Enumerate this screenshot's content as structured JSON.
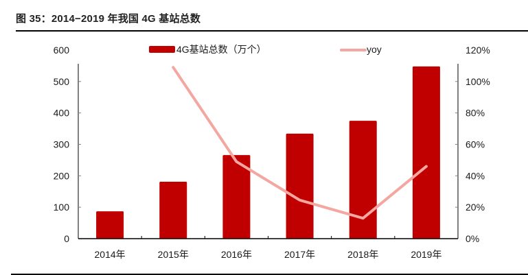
{
  "header": {
    "title": "图 35：2014−2019 年我国 4G 基站总数"
  },
  "colors": {
    "bar": "#c00000",
    "line": "#f4a6a0",
    "axis": "#808080",
    "baseline": "#000000"
  },
  "chart_data": {
    "type": "bar+line",
    "title": "图 35：2014−2019 年我国 4G 基站总数",
    "categories": [
      "2014年",
      "2015年",
      "2016年",
      "2017年",
      "2018年",
      "2019年"
    ],
    "series": [
      {
        "name": "4G基站总数（万个）",
        "type": "bar",
        "axis": "left",
        "values": [
          87,
          181,
          266,
          334,
          375,
          548
        ]
      },
      {
        "name": "yoy",
        "type": "line",
        "axis": "right",
        "values": [
          null,
          1.09,
          0.49,
          0.245,
          0.13,
          0.46
        ]
      }
    ],
    "left_axis": {
      "ylim": [
        0,
        600
      ],
      "ticks": [
        "0",
        "100",
        "200",
        "300",
        "400",
        "500",
        "600"
      ]
    },
    "right_axis": {
      "ylim": [
        0,
        1.2
      ],
      "ticks": [
        "0%",
        "20%",
        "40%",
        "60%",
        "80%",
        "100%",
        "120%"
      ]
    },
    "legend": {
      "position": "top",
      "entries": [
        "4G基站总数（万个）",
        "yoy"
      ]
    },
    "grid": false,
    "xlabel": "",
    "ylabel": ""
  }
}
